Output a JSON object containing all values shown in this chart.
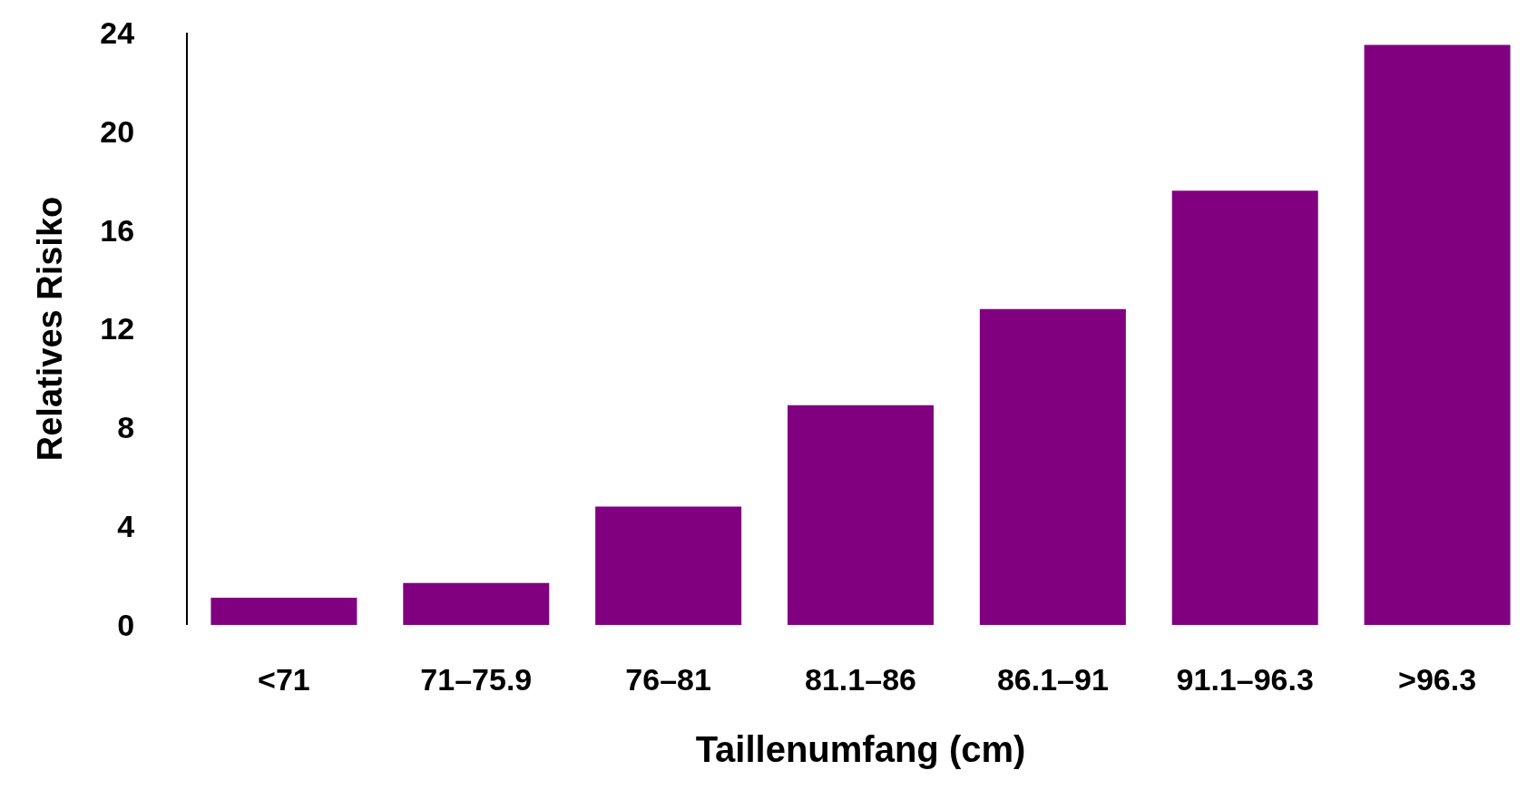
{
  "chart_data": {
    "type": "bar",
    "xlabel": "Taillenumfang (cm)",
    "ylabel": "Relatives Risiko",
    "categories": [
      "<71",
      "71–75.9",
      "76–81",
      "81.1–86",
      "86.1–91",
      "91.1–96.3",
      ">96.3"
    ],
    "values": [
      1.1,
      1.7,
      4.8,
      8.9,
      12.8,
      17.6,
      23.5
    ],
    "color": "#800080",
    "ylim": [
      0,
      24
    ],
    "yticks": [
      0,
      4,
      8,
      12,
      16,
      20,
      24
    ],
    "legend": false
  }
}
